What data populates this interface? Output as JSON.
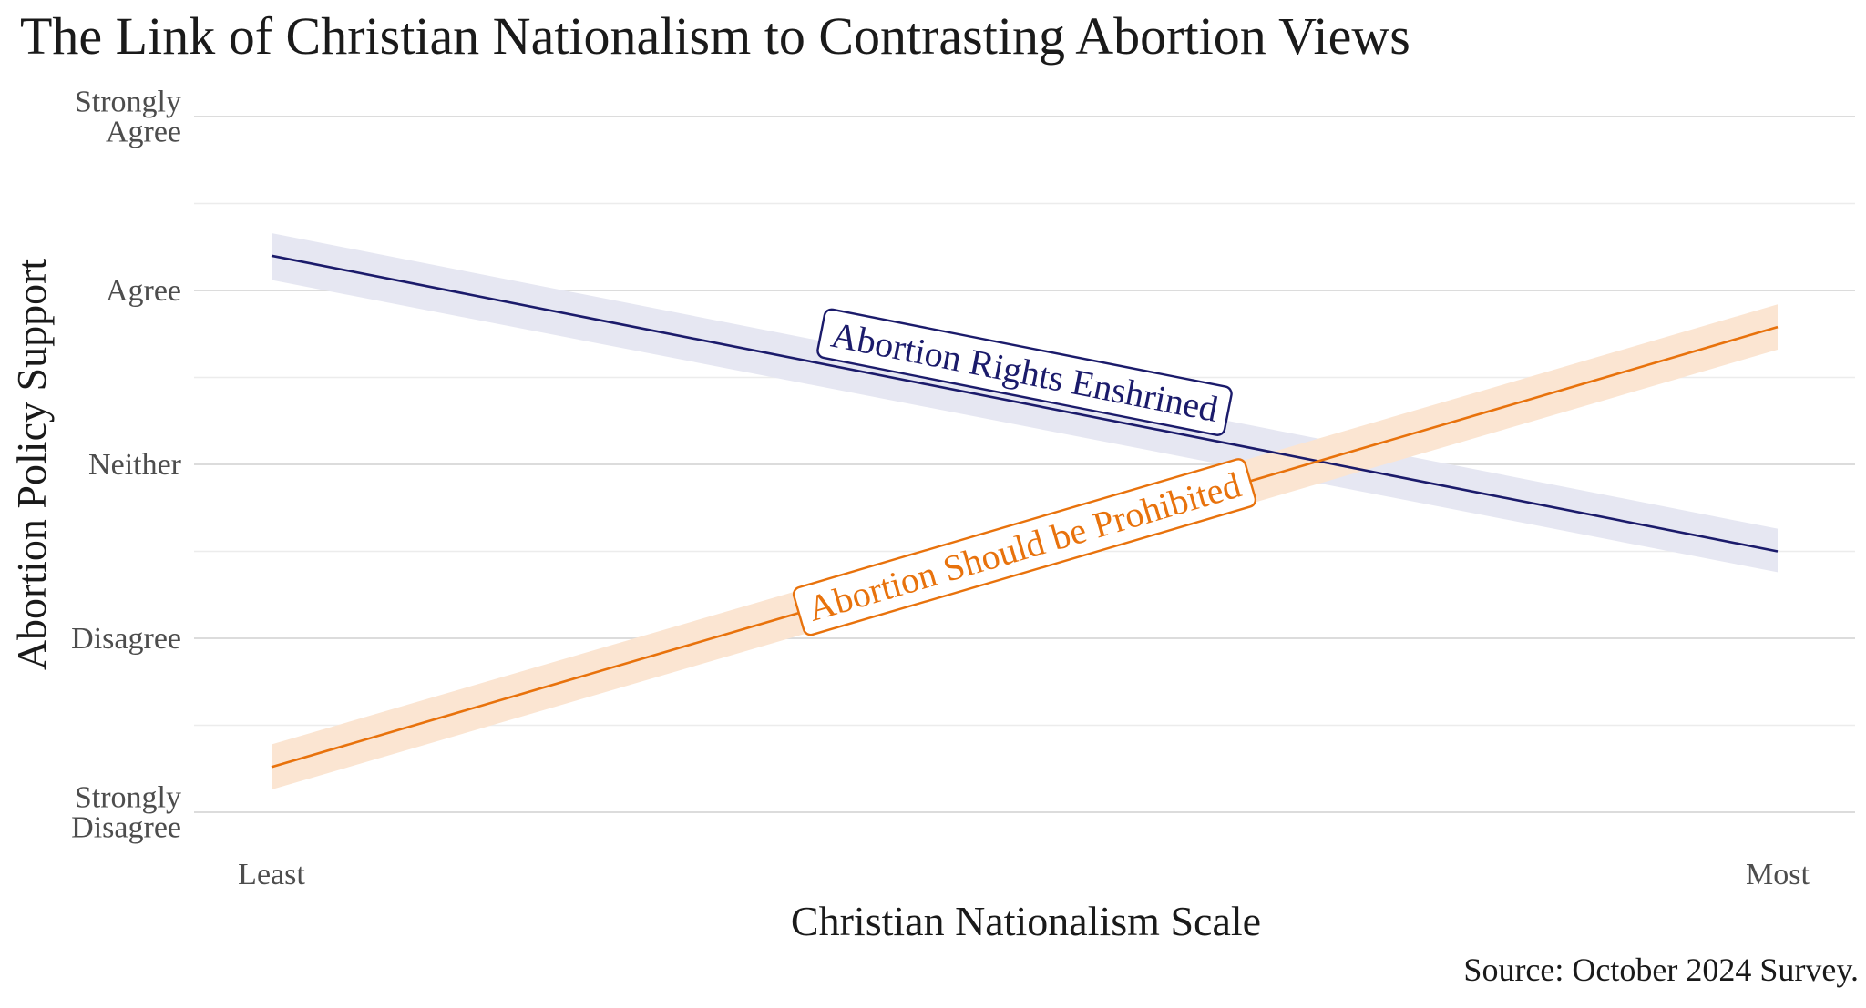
{
  "title": "The Link of Christian Nationalism to Contrasting Abortion Views",
  "source": "Source: October 2024 Survey.",
  "chart_data": {
    "type": "line",
    "title": "The Link of Christian Nationalism to Contrasting Abortion Views",
    "xlabel": "Christian Nationalism Scale",
    "ylabel": "Abortion Policy Support",
    "x_tick_labels": [
      "Least",
      "Most"
    ],
    "xlim": [
      0,
      1
    ],
    "y_tick_labels": [
      {
        "lines": [
          "Strongly",
          "Disagree"
        ]
      },
      {
        "lines": [
          "Disagree"
        ]
      },
      {
        "lines": [
          "Neither"
        ]
      },
      {
        "lines": [
          "Agree"
        ]
      },
      {
        "lines": [
          "Strongly",
          "Agree"
        ]
      }
    ],
    "ylim": [
      1,
      5
    ],
    "grid": true,
    "series": [
      {
        "name": "Abortion Rights Enshrined",
        "color": "#1b1b6b",
        "band_color": "#e6e7f2",
        "x": [
          0,
          1
        ],
        "y": [
          4.2,
          2.5
        ],
        "ci_lower": [
          4.06,
          2.38
        ],
        "ci_upper": [
          4.33,
          2.63
        ],
        "label_at_x": 0.5,
        "label_y_offset": 0.18
      },
      {
        "name": "Abortion Should be Prohibited",
        "color": "#e8720c",
        "band_color": "#fbe5d2",
        "x": [
          0,
          1
        ],
        "y": [
          1.26,
          3.79
        ],
        "ci_lower": [
          1.13,
          3.66
        ],
        "ci_upper": [
          1.39,
          3.92
        ],
        "label_at_x": 0.5,
        "label_y_offset": 0.0
      }
    ]
  }
}
